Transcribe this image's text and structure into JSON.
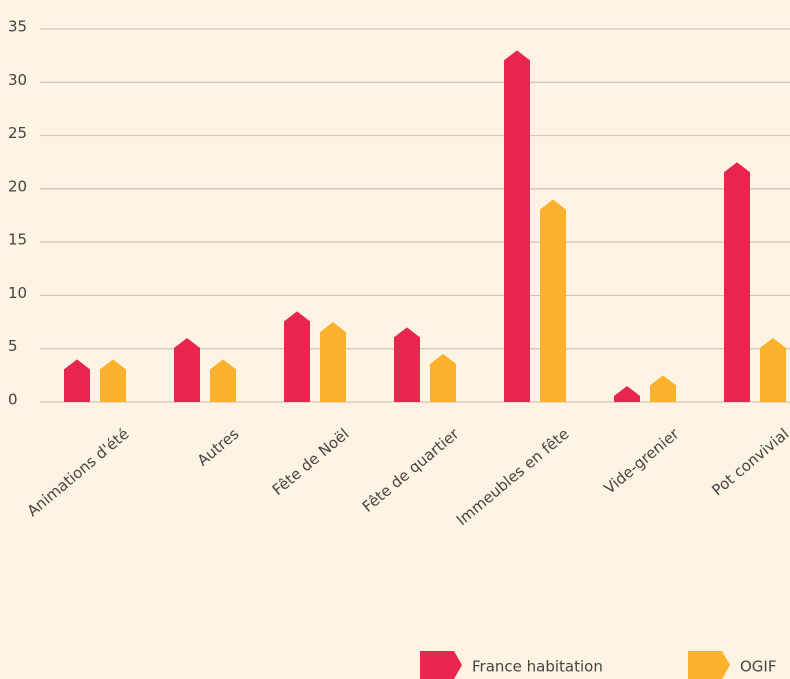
{
  "chart_data": {
    "type": "bar",
    "categories": [
      "Animations d'été",
      "Autres",
      "Fête de Noël",
      "Fête de quartier",
      "Immeubles en fête",
      "Vide-grenier",
      "Pot convivial"
    ],
    "series": [
      {
        "name": "France habitation",
        "color": "#e8254f",
        "values": [
          4,
          6,
          8.5,
          7,
          33,
          1.5,
          22.5
        ]
      },
      {
        "name": "OGIF",
        "color": "#fbb12b",
        "values": [
          4,
          4,
          7.5,
          4.5,
          19,
          2.5,
          6
        ]
      }
    ],
    "ylim": [
      0,
      35
    ],
    "yticks": [
      0,
      5,
      10,
      15,
      20,
      25,
      30,
      35
    ],
    "grid": true
  }
}
